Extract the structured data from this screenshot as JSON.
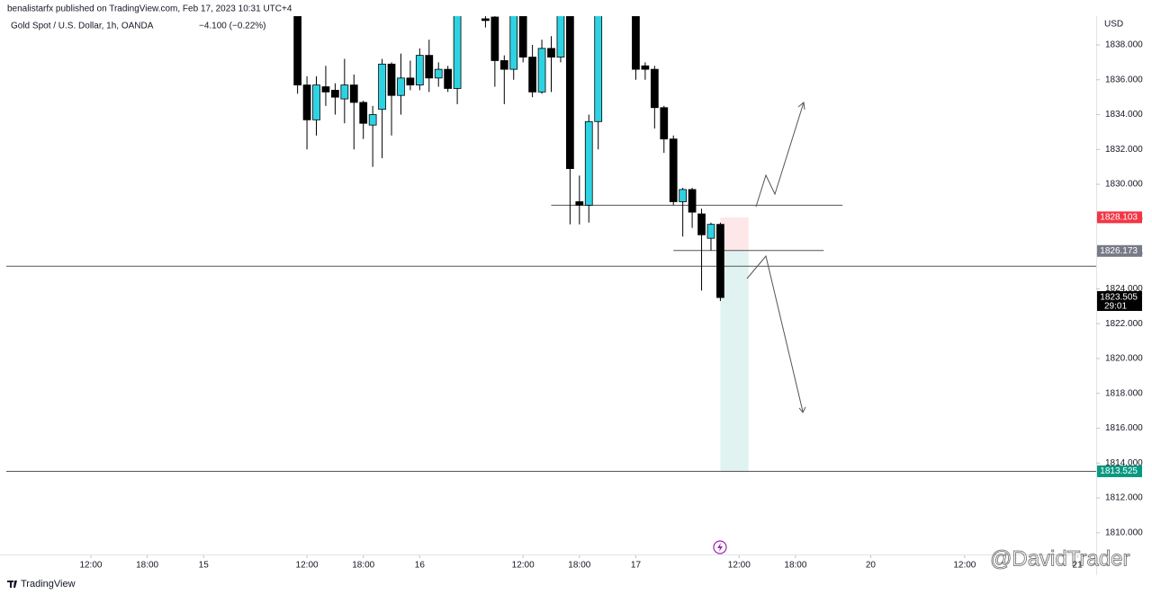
{
  "header": {
    "published": "benalistarfx published on TradingView.com, Feb 17, 2023 10:31 UTC+4",
    "footer": "TradingView",
    "watermark": "@DavidTrader"
  },
  "chart_data": {
    "type": "candlestick",
    "title": "Gold Spot / U.S. Dollar, 1h, OANDA",
    "change": "−4.100 (−0.22%)",
    "currency": "USD",
    "up_color": "#2ed3e3",
    "down_color": "#000000",
    "xlim": [
      -31,
      85
    ],
    "xticks": [
      {
        "value": -22,
        "label": "12:00"
      },
      {
        "value": -16,
        "label": "18:00"
      },
      {
        "value": -10,
        "label": "15"
      },
      {
        "value": 1,
        "label": "12:00"
      },
      {
        "value": 7,
        "label": "18:00"
      },
      {
        "value": 13,
        "label": "16"
      },
      {
        "value": 24,
        "label": "12:00"
      },
      {
        "value": 30,
        "label": "18:00"
      },
      {
        "value": 36,
        "label": "17"
      },
      {
        "value": 47,
        "label": "12:00"
      },
      {
        "value": 53,
        "label": "18:00"
      },
      {
        "value": 61,
        "label": "20"
      },
      {
        "value": 71,
        "label": "12:00"
      },
      {
        "value": 83,
        "label": "21"
      }
    ],
    "ylim": [
      1808.7,
      1839.65
    ],
    "yticks": [
      {
        "value": 1810,
        "label": "1810.000"
      },
      {
        "value": 1812,
        "label": "1812.000"
      },
      {
        "value": 1814,
        "label": "1814.000"
      },
      {
        "value": 1816,
        "label": "1816.000"
      },
      {
        "value": 1818,
        "label": "1818.000"
      },
      {
        "value": 1820,
        "label": "1820.000"
      },
      {
        "value": 1822,
        "label": "1822.000"
      },
      {
        "value": 1824,
        "label": "1824.000"
      },
      {
        "value": 1826,
        "label": "1826.000"
      },
      {
        "value": 1828,
        "label": "1828.000"
      },
      {
        "value": 1830,
        "label": "1830.000"
      },
      {
        "value": 1832,
        "label": "1832.000"
      },
      {
        "value": 1834,
        "label": "1834.000"
      },
      {
        "value": 1836,
        "label": "1836.000"
      },
      {
        "value": 1838,
        "label": "1838.000"
      }
    ],
    "candles": [
      {
        "x": 0,
        "open": 1840,
        "high": 1841,
        "low": 1835.2,
        "close": 1835.7
      },
      {
        "x": 1,
        "open": 1835.7,
        "high": 1836.2,
        "low": 1832,
        "close": 1833.7
      },
      {
        "x": 2,
        "open": 1833.7,
        "high": 1836.2,
        "low": 1832.8,
        "close": 1835.7
      },
      {
        "x": 3,
        "open": 1835.6,
        "high": 1836.8,
        "low": 1834.5,
        "close": 1835.3
      },
      {
        "x": 4,
        "open": 1835.4,
        "high": 1835.8,
        "low": 1834,
        "close": 1835
      },
      {
        "x": 5,
        "open": 1834.9,
        "high": 1837.2,
        "low": 1833.5,
        "close": 1835.7
      },
      {
        "x": 6,
        "open": 1835.7,
        "high": 1836.3,
        "low": 1832,
        "close": 1834.7
      },
      {
        "x": 7,
        "open": 1834.7,
        "high": 1834.8,
        "low": 1832.6,
        "close": 1833.5
      },
      {
        "x": 8,
        "open": 1833.4,
        "high": 1834.5,
        "low": 1831,
        "close": 1834
      },
      {
        "x": 9,
        "open": 1834.3,
        "high": 1837.2,
        "low": 1831.5,
        "close": 1836.9
      },
      {
        "x": 10,
        "open": 1836.9,
        "high": 1837,
        "low": 1832.8,
        "close": 1835.1
      },
      {
        "x": 11,
        "open": 1835.1,
        "high": 1837.5,
        "low": 1834,
        "close": 1836.1
      },
      {
        "x": 12,
        "open": 1836.1,
        "high": 1837.1,
        "low": 1835.4,
        "close": 1835.7
      },
      {
        "x": 13,
        "open": 1835.7,
        "high": 1837.8,
        "low": 1835.4,
        "close": 1837.4
      },
      {
        "x": 14,
        "open": 1837.4,
        "high": 1838.3,
        "low": 1835.3,
        "close": 1836.1
      },
      {
        "x": 15,
        "open": 1836.1,
        "high": 1837,
        "low": 1835.6,
        "close": 1836.6
      },
      {
        "x": 16,
        "open": 1836.6,
        "high": 1836.8,
        "low": 1835.3,
        "close": 1835.5
      },
      {
        "x": 17,
        "open": 1835.5,
        "high": 1841,
        "low": 1834.6,
        "close": 1840.5
      },
      {
        "x": 20,
        "open": 1839.5,
        "high": 1839.8,
        "low": 1839,
        "close": 1839.4
      },
      {
        "x": 21,
        "open": 1839.6,
        "high": 1840,
        "low": 1835.6,
        "close": 1837.1
      },
      {
        "x": 22,
        "open": 1837.1,
        "high": 1837.4,
        "low": 1834.6,
        "close": 1836.6
      },
      {
        "x": 23,
        "open": 1836.6,
        "high": 1841,
        "low": 1836,
        "close": 1840.5
      },
      {
        "x": 24,
        "open": 1840.5,
        "high": 1841,
        "low": 1837,
        "close": 1837.3
      },
      {
        "x": 25,
        "open": 1837.3,
        "high": 1838,
        "low": 1835,
        "close": 1835.3
      },
      {
        "x": 26,
        "open": 1835.3,
        "high": 1838.3,
        "low": 1835.2,
        "close": 1837.8
      },
      {
        "x": 27,
        "open": 1837.8,
        "high": 1838.5,
        "low": 1835.3,
        "close": 1837.3
      },
      {
        "x": 28,
        "open": 1837.3,
        "high": 1841,
        "low": 1837,
        "close": 1840.5
      },
      {
        "x": 29,
        "open": 1840.5,
        "high": 1841,
        "low": 1827.7,
        "close": 1830.9
      },
      {
        "x": 30,
        "open": 1829,
        "high": 1830.5,
        "low": 1827.7,
        "close": 1828.8
      },
      {
        "x": 31,
        "open": 1828.8,
        "high": 1834,
        "low": 1827.8,
        "close": 1833.6
      },
      {
        "x": 32,
        "open": 1833.6,
        "high": 1841,
        "low": 1832,
        "close": 1840.5
      },
      {
        "x": 36,
        "open": 1840,
        "high": 1841,
        "low": 1836,
        "close": 1836.6
      },
      {
        "x": 37,
        "open": 1836.8,
        "high": 1837,
        "low": 1836,
        "close": 1836.6
      },
      {
        "x": 38,
        "open": 1836.6,
        "high": 1836.8,
        "low": 1833.2,
        "close": 1834.4
      },
      {
        "x": 39,
        "open": 1834.4,
        "high": 1834.5,
        "low": 1831.8,
        "close": 1832.6
      },
      {
        "x": 40,
        "open": 1832.6,
        "high": 1832.8,
        "low": 1828.8,
        "close": 1829
      },
      {
        "x": 41,
        "open": 1829,
        "high": 1829.8,
        "low": 1827,
        "close": 1829.7
      },
      {
        "x": 42,
        "open": 1829.7,
        "high": 1829.8,
        "low": 1827.5,
        "close": 1828.4
      },
      {
        "x": 43,
        "open": 1828.3,
        "high": 1828.6,
        "low": 1823.9,
        "close": 1827.1
      },
      {
        "x": 44,
        "open": 1826.9,
        "high": 1827.8,
        "low": 1826.2,
        "close": 1827.7
      },
      {
        "x": 45,
        "open": 1827.7,
        "high": 1827.8,
        "low": 1823.3,
        "close": 1823.5
      }
    ],
    "hlines": [
      1825.3,
      1813.525
    ],
    "segments": [
      {
        "value": 1828.8,
        "from": 27,
        "to": 58
      },
      {
        "value": 1826.2,
        "from": 40,
        "to": 56
      }
    ],
    "position": {
      "from": 45,
      "to": 48,
      "stop": 1828.103,
      "entry": 1826.173,
      "target": 1813.525
    },
    "last_price": 1823.505,
    "countdown": "29:01"
  }
}
